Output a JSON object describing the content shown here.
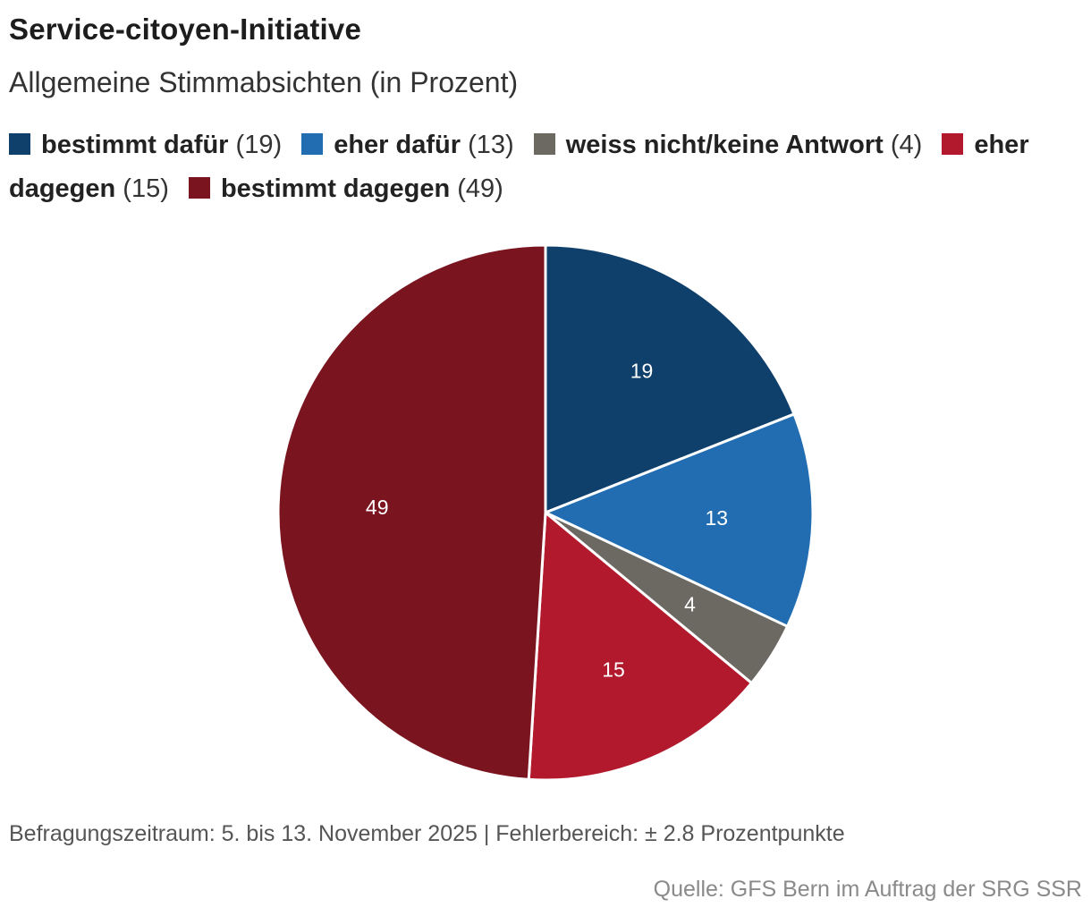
{
  "chart_data": {
    "type": "pie",
    "title": "Service-citoyen-Initiative",
    "subtitle": "Allgemeine Stimmabsichten (in Prozent)",
    "categories": [
      "bestimmt dafür",
      "eher dafür",
      "weiss nicht/keine Antwort",
      "eher dagegen",
      "bestimmt dagegen"
    ],
    "values": [
      19,
      13,
      4,
      15,
      49
    ],
    "colors": [
      "#0f3f6b",
      "#226db2",
      "#6b6962",
      "#b2192c",
      "#7a1520"
    ],
    "legend_position": "top",
    "footnote": "Befragungszeitraum: 5. bis 13. November 2025 | Fehlerbereich: ± 2.8 Prozentpunkte",
    "source": "Quelle: GFS Bern im Auftrag der SRG SSR"
  }
}
